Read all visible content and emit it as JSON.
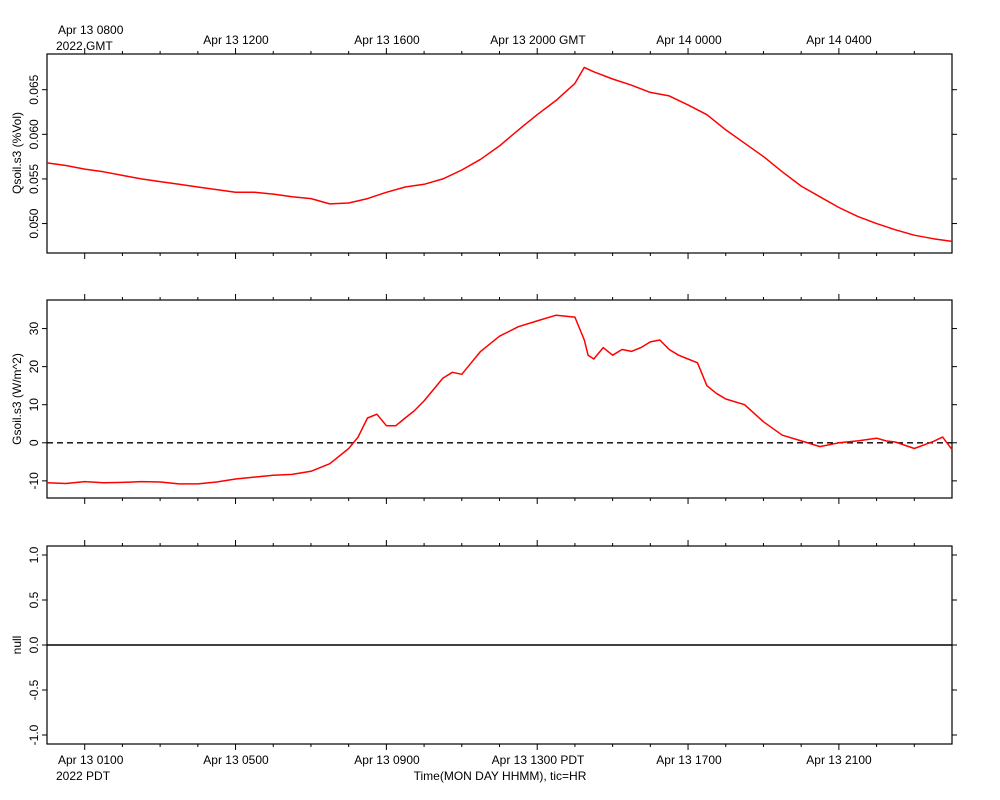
{
  "top_axis": {
    "first_label": "Apr 13 0800",
    "year_label": "2022 GMT",
    "labels": [
      "Apr 13 1200",
      "Apr 13 1600",
      "Apr 13 2000 GMT",
      "Apr 14 0000",
      "Apr 14 0400"
    ]
  },
  "bottom_axis": {
    "first_label": "Apr 13 0100",
    "year_label": "2022 PDT",
    "labels": [
      "Apr 13 0500",
      "Apr 13 0900",
      "Apr 13 1300 PDT",
      "Apr 13 1700",
      "Apr 13 2100"
    ],
    "title": "Time(MON DAY HHMM), tic=HR"
  },
  "colors": {
    "series": "#ff0000",
    "axis": "#000000",
    "zero_line": "#000000"
  },
  "chart_data": [
    {
      "type": "line",
      "ylabel": "Qsoil.s3 (%Vol)",
      "xlim_hours": [
        -1,
        23
      ],
      "ylim": [
        0.0467,
        0.069
      ],
      "yticks": [
        0.05,
        0.055,
        0.06,
        0.065
      ],
      "ytick_labels": [
        "0.050",
        "0.055",
        "0.060",
        "0.065"
      ],
      "grid": false,
      "series": [
        {
          "x": [
            -1.0,
            -0.5,
            0.0,
            0.5,
            1.0,
            1.5,
            2.0,
            2.5,
            3.0,
            3.5,
            4.0,
            4.5,
            5.0,
            5.5,
            6.0,
            6.5,
            7.0,
            7.5,
            8.0,
            8.5,
            9.0,
            9.5,
            10.0,
            10.5,
            11.0,
            11.5,
            12.0,
            12.5,
            13.0,
            13.25,
            13.5,
            14.0,
            14.5,
            15.0,
            15.5,
            16.0,
            16.5,
            17.0,
            17.5,
            18.0,
            18.5,
            19.0,
            19.5,
            20.0,
            20.5,
            21.0,
            21.5,
            22.0,
            22.5,
            23.0
          ],
          "y": [
            0.0568,
            0.0565,
            0.0561,
            0.0558,
            0.0554,
            0.055,
            0.0547,
            0.0544,
            0.0541,
            0.0538,
            0.0535,
            0.0535,
            0.0533,
            0.053,
            0.0528,
            0.0522,
            0.0523,
            0.0528,
            0.0535,
            0.0541,
            0.0544,
            0.055,
            0.056,
            0.0572,
            0.0587,
            0.0605,
            0.0622,
            0.0638,
            0.0657,
            0.0675,
            0.067,
            0.0662,
            0.0655,
            0.0647,
            0.0643,
            0.0633,
            0.0622,
            0.0605,
            0.059,
            0.0575,
            0.0558,
            0.0542,
            0.053,
            0.0518,
            0.0508,
            0.05,
            0.0493,
            0.0487,
            0.0483,
            0.048
          ]
        }
      ]
    },
    {
      "type": "line",
      "ylabel": "Gsoil.s3 (W/m^2)",
      "xlim_hours": [
        -1,
        23
      ],
      "ylim": [
        -14.5,
        37.5
      ],
      "yticks": [
        -10,
        0,
        10,
        20,
        30
      ],
      "ytick_labels": [
        "-10",
        "0",
        "10",
        "20",
        "30"
      ],
      "zero_line": true,
      "grid": false,
      "series": [
        {
          "x": [
            -1.0,
            -0.5,
            0.0,
            0.5,
            1.0,
            1.5,
            2.0,
            2.5,
            3.0,
            3.5,
            4.0,
            4.5,
            5.0,
            5.5,
            6.0,
            6.5,
            7.0,
            7.25,
            7.5,
            7.75,
            8.0,
            8.25,
            8.5,
            8.75,
            9.0,
            9.25,
            9.5,
            9.75,
            10.0,
            10.25,
            10.5,
            11.0,
            11.5,
            12.0,
            12.5,
            13.0,
            13.25,
            13.35,
            13.5,
            13.75,
            14.0,
            14.25,
            14.5,
            14.75,
            15.0,
            15.25,
            15.5,
            15.75,
            16.0,
            16.25,
            16.5,
            16.75,
            17.0,
            17.5,
            18.0,
            18.5,
            19.0,
            19.5,
            20.0,
            20.5,
            21.0,
            21.25,
            21.5,
            22.0,
            22.5,
            22.75,
            23.0
          ],
          "y": [
            -10.5,
            -10.7,
            -10.2,
            -10.5,
            -10.4,
            -10.2,
            -10.3,
            -10.8,
            -10.8,
            -10.3,
            -9.5,
            -9.0,
            -8.5,
            -8.3,
            -7.5,
            -5.5,
            -1.5,
            1.5,
            6.5,
            7.5,
            4.5,
            4.5,
            6.5,
            8.5,
            11.0,
            14.0,
            17.0,
            18.5,
            18.0,
            21.0,
            24.0,
            28.0,
            30.5,
            32.0,
            33.5,
            33.0,
            27.0,
            23.0,
            22.0,
            25.0,
            23.0,
            24.5,
            24.0,
            25.0,
            26.5,
            27.0,
            24.5,
            23.0,
            22.0,
            21.0,
            15.0,
            13.0,
            11.5,
            10.0,
            5.5,
            2.0,
            0.5,
            -1.0,
            0.0,
            0.5,
            1.2,
            0.5,
            0.2,
            -1.5,
            0.3,
            1.5,
            -1.8
          ]
        }
      ]
    },
    {
      "type": "line",
      "ylabel": "null",
      "xlim_hours": [
        -1,
        23
      ],
      "ylim": [
        -1.1,
        1.1
      ],
      "yticks": [
        -1.0,
        -0.5,
        0.0,
        0.5,
        1.0
      ],
      "ytick_labels": [
        "-1.0",
        "-0.5",
        "0.0",
        "0.5",
        "1.0"
      ],
      "grid": false,
      "series": [
        {
          "x": [
            -1,
            23
          ],
          "y": [
            0.0,
            0.0
          ]
        }
      ]
    }
  ]
}
